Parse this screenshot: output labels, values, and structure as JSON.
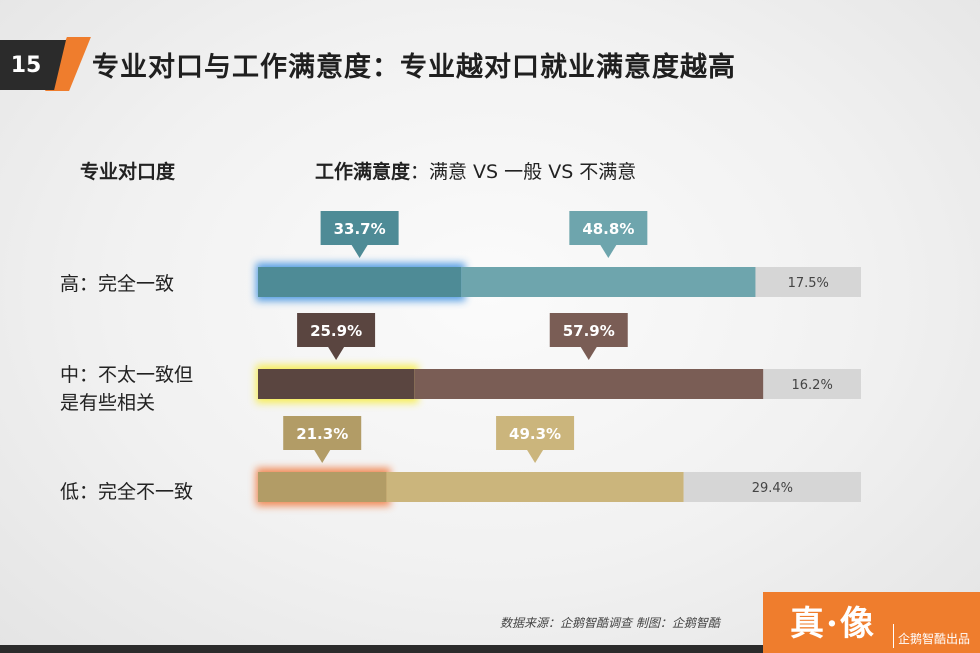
{
  "page_number": "15",
  "title": "专业对口与工作满意度：专业越对口就业满意度越高",
  "header": {
    "left": "专业对口度",
    "right_bold": "工作满意度",
    "right_rest": "：满意 VS 一般 VS 不满意"
  },
  "footer": {
    "source": "数据来源：企鹅智酷调查  制图：企鹅智酷",
    "logo": "真·像",
    "logo_sub": "企鹅智酷出品"
  },
  "chart_data": {
    "type": "bar",
    "stacked": true,
    "orientation": "horizontal",
    "categories": [
      "高：完全一致",
      "中：不太一致但是有些相关",
      "低：完全不一致"
    ],
    "category_lines": [
      [
        "高：完全一致"
      ],
      [
        "中：不太一致但",
        "是有些相关"
      ],
      [
        "低：完全不一致"
      ]
    ],
    "series": [
      {
        "values": [
          33.7,
          25.9,
          21.3
        ],
        "labels": [
          "33.7%",
          "25.9%",
          "21.3%"
        ]
      },
      {
        "values": [
          48.8,
          57.9,
          49.3
        ],
        "labels": [
          "48.8%",
          "57.9%",
          "49.3%"
        ]
      },
      {
        "values": [
          17.5,
          16.2,
          29.4
        ],
        "labels": [
          "17.5%",
          "16.2%",
          "29.4%"
        ]
      }
    ],
    "colors": [
      [
        "#4e8b96",
        "#6ea5ad",
        "#d6d6d6"
      ],
      [
        "#5a4540",
        "#7a5d55",
        "#d6d6d6"
      ],
      [
        "#b29c66",
        "#cbb57c",
        "#d6d6d6"
      ]
    ],
    "glow_colors": [
      "#3a8fe0",
      "#f7ec3a",
      "#f0773a"
    ]
  }
}
